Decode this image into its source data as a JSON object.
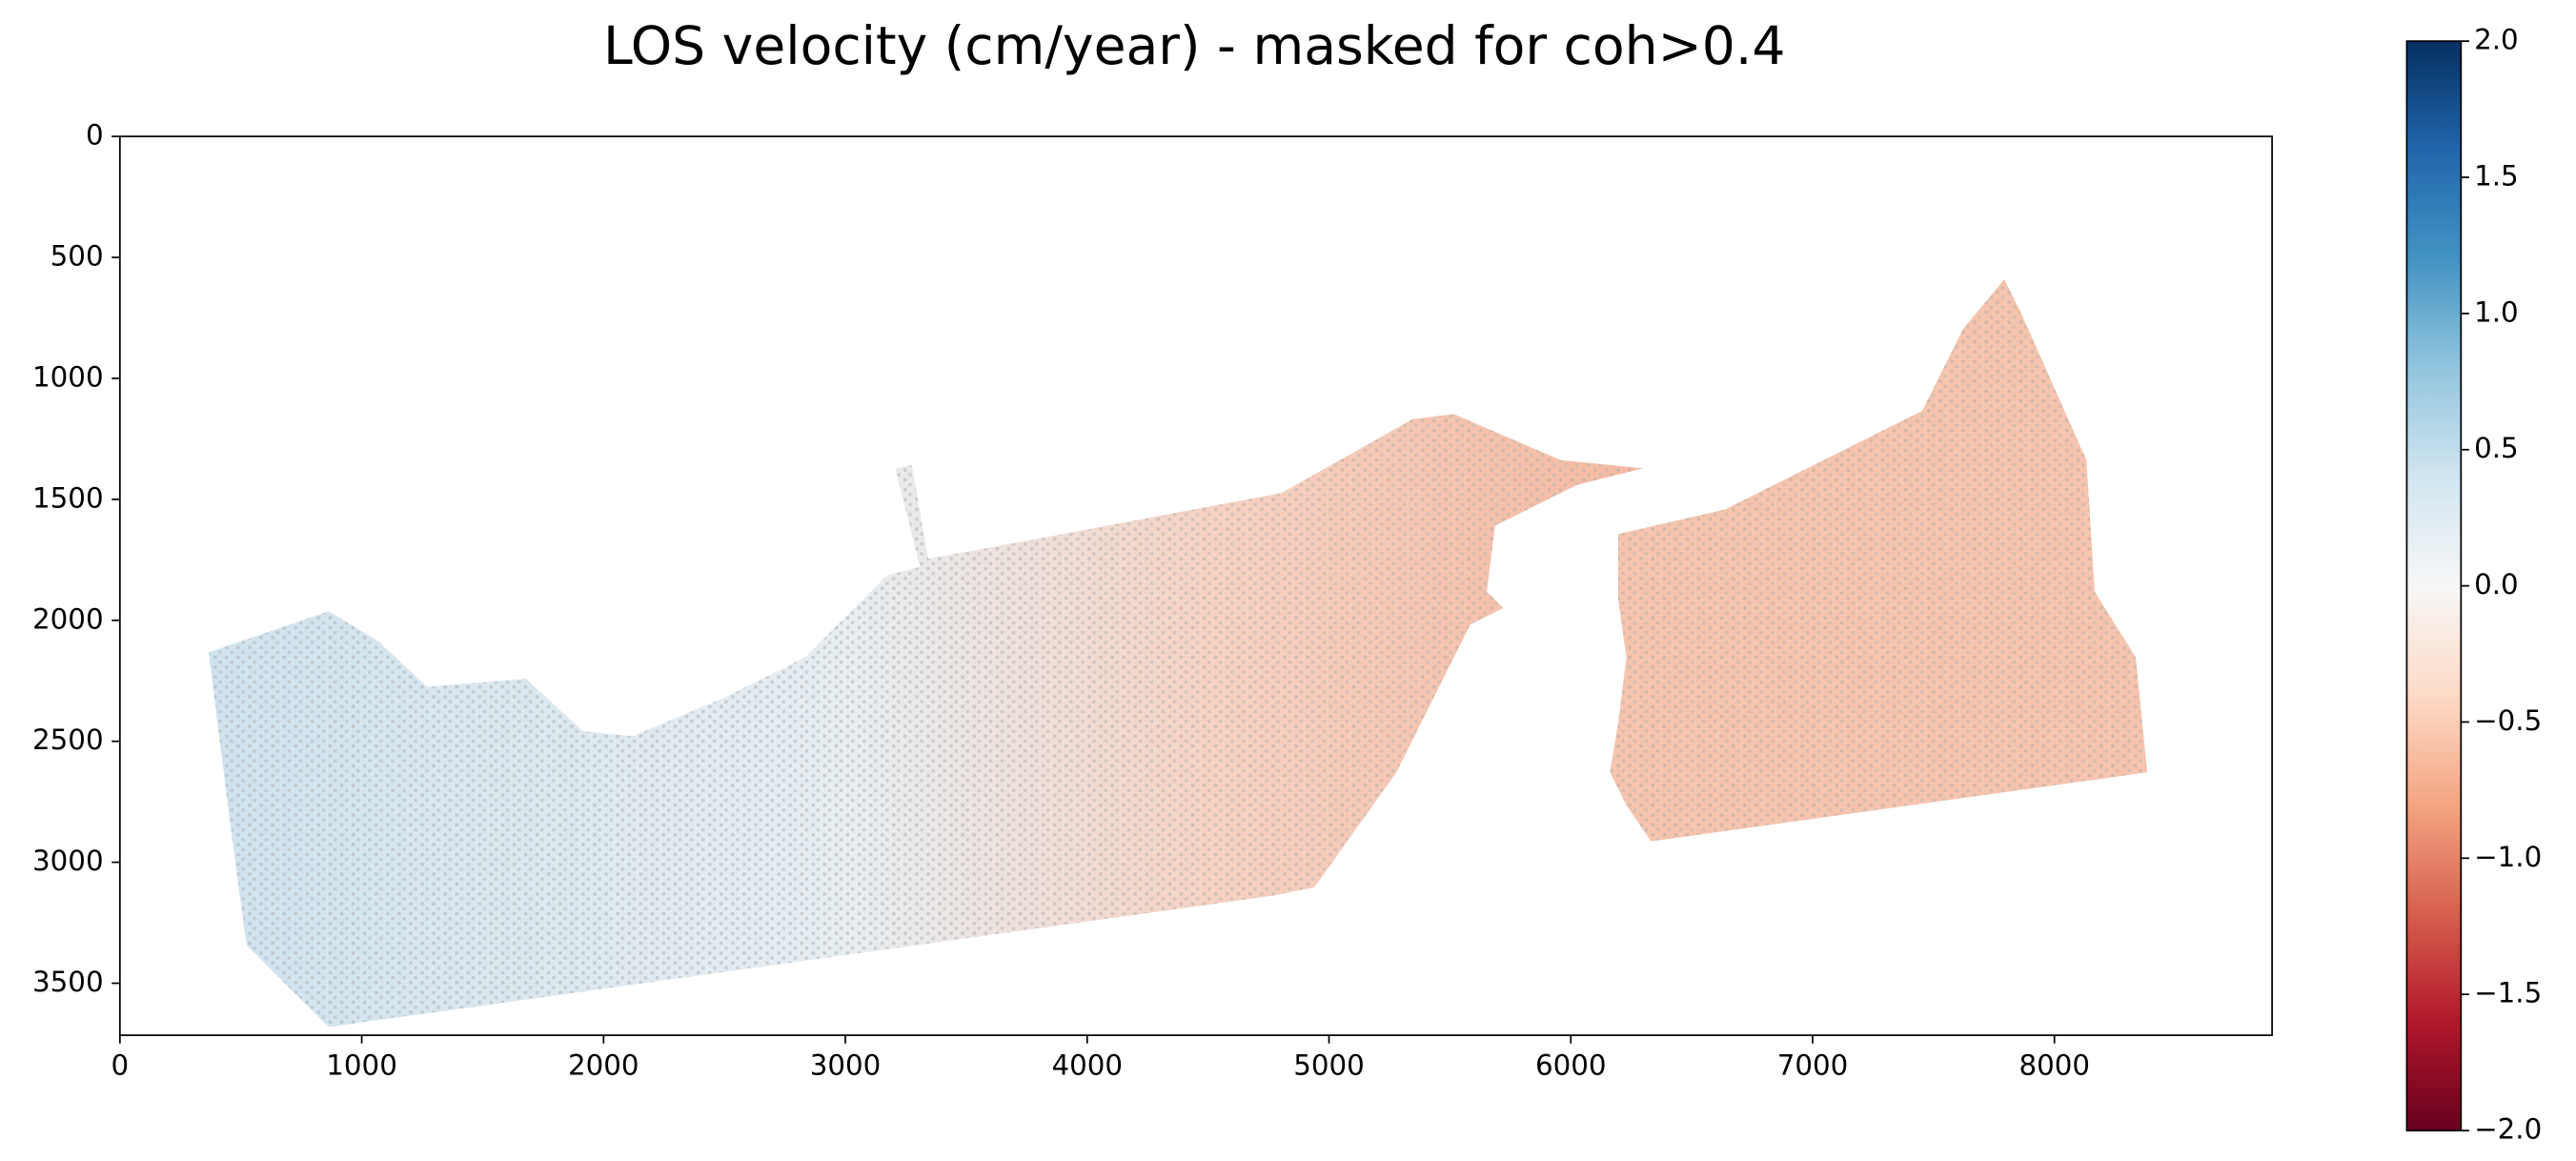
{
  "chart_data": {
    "type": "image",
    "title": "LOS velocity (cm/year) - masked for coh>0.4",
    "xlim": [
      0,
      8900
    ],
    "xticks": [
      0,
      1000,
      2000,
      3000,
      4000,
      5000,
      6000,
      7000,
      8000
    ],
    "ylim": [
      3715,
      0
    ],
    "yticks": [
      0,
      500,
      1000,
      1500,
      2000,
      2500,
      3000,
      3500
    ],
    "colorbar": {
      "colormap": "RdBu",
      "lim": [
        -2,
        2
      ],
      "ticks": [
        {
          "value": 2,
          "label": "2.0"
        },
        {
          "value": 1.5,
          "label": "1.5"
        },
        {
          "value": 1,
          "label": "1.0"
        },
        {
          "value": 0.5,
          "label": "0.5"
        },
        {
          "value": 0,
          "label": "0.0"
        },
        {
          "value": -0.5,
          "label": "−0.5"
        },
        {
          "value": -1,
          "label": "−1.0"
        },
        {
          "value": -1.5,
          "label": "−1.5"
        },
        {
          "value": -2,
          "label": "−2.0"
        }
      ]
    }
  }
}
